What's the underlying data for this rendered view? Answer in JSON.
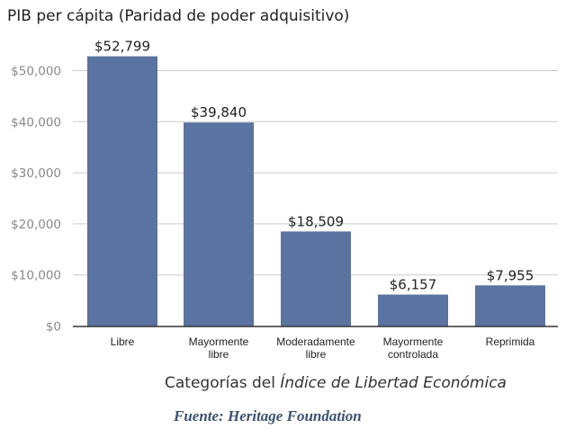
{
  "chart_data": {
    "type": "bar",
    "title": "PIB per cápita (Paridad de poder adquisitivo)",
    "categories": [
      [
        "Libre"
      ],
      [
        "Mayormente",
        "libre"
      ],
      [
        "Moderadamente",
        "libre"
      ],
      [
        "Mayormente",
        "controlada"
      ],
      [
        "Reprimida"
      ]
    ],
    "values": [
      52799,
      39840,
      18509,
      6157,
      7955
    ],
    "data_labels": [
      "$52,799",
      "$39,840",
      "$18,509",
      "$6,157",
      "$7,955"
    ],
    "yticks": [
      0,
      10000,
      20000,
      30000,
      40000,
      50000
    ],
    "ytick_labels": [
      "$0",
      "$10,000",
      "$20,000",
      "$30,000",
      "$40,000",
      "$50,000"
    ],
    "ylim": [
      0,
      55000
    ],
    "xlabel_prefix": "Categorías del ",
    "xlabel_italic": "Índice de Libertad Económica",
    "ylabel": "",
    "grid": true,
    "bar_color": "#5b73a0"
  },
  "source": "Fuente: Heritage Foundation"
}
